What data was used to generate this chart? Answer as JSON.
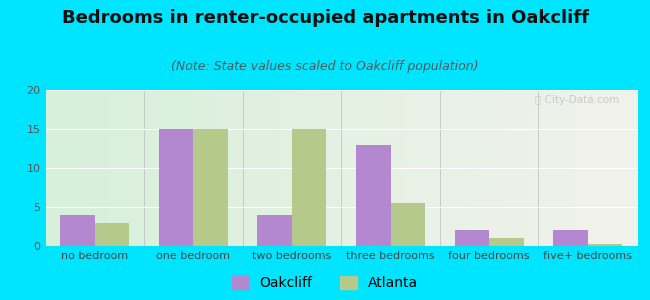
{
  "title": "Bedrooms in renter-occupied apartments in Oakcliff",
  "subtitle": "(Note: State values scaled to Oakcliff population)",
  "categories": [
    "no bedroom",
    "one bedroom",
    "two bedrooms",
    "three bedrooms",
    "four bedrooms",
    "five+ bedrooms"
  ],
  "oakcliff_values": [
    4,
    15,
    4,
    13,
    2,
    2
  ],
  "atlanta_values": [
    3,
    15,
    15,
    5.5,
    1,
    0.3
  ],
  "oakcliff_color": "#b388d0",
  "atlanta_color": "#b5c98a",
  "background_outer": "#00e5ff",
  "grad_left": "#d6f0da",
  "grad_right": "#f2f2ec",
  "ylim": [
    0,
    20
  ],
  "yticks": [
    0,
    5,
    10,
    15,
    20
  ],
  "bar_width": 0.35,
  "title_fontsize": 13,
  "subtitle_fontsize": 9,
  "tick_fontsize": 8,
  "legend_fontsize": 10
}
